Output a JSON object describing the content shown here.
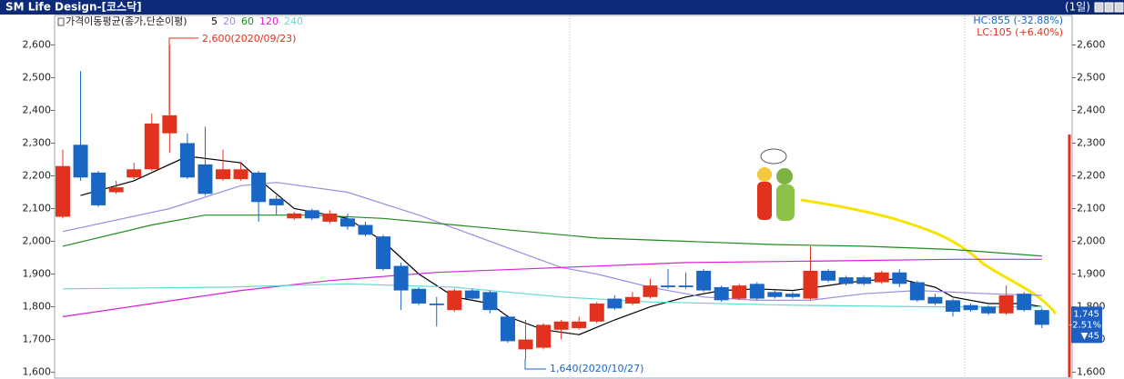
{
  "chart_data": {
    "type": "candlestick",
    "title": "SM Life Design-[코스닥]",
    "period": "(1일)",
    "indicator_label": "가격이동평균(종가,단순이평)",
    "hc_label": "HC:855 (-32.88%)",
    "lc_label": "LC:105 (+6.40%)",
    "high_annotation": "2,600(2020/09/23)",
    "low_annotation": "1,640(2020/10/27)",
    "last_price": "1,745",
    "last_change_pct": "-2.51%",
    "last_change": "▼45",
    "up_color": "#e0321c",
    "down_color": "#1a66c4",
    "open": [
      2075,
      2295,
      2210,
      2150,
      2195,
      2220,
      2330,
      2300,
      2235,
      2190,
      2190,
      2210,
      2130,
      2070,
      2095,
      2060,
      2070,
      2050,
      2015,
      1925,
      1855,
      1810,
      1790,
      1850,
      1845,
      1770,
      1670,
      1675,
      1730,
      1735,
      1755,
      1825,
      1810,
      1830,
      1865,
      1865,
      1910,
      1860,
      1825,
      1870,
      1845,
      1840,
      1825,
      1910,
      1890,
      1890,
      1875,
      1905,
      1875,
      1830,
      1820,
      1805,
      1800,
      1780,
      1840,
      1790
    ],
    "high": [
      2280,
      2520,
      2215,
      2185,
      2240,
      2390,
      2600,
      2330,
      2350,
      2280,
      2240,
      2215,
      2140,
      2090,
      2100,
      2095,
      2085,
      2060,
      2020,
      1935,
      1860,
      1830,
      1855,
      1855,
      1850,
      1775,
      1760,
      1750,
      1760,
      1770,
      1815,
      1835,
      1845,
      1885,
      1915,
      1905,
      1915,
      1865,
      1870,
      1875,
      1855,
      1845,
      1985,
      1915,
      1895,
      1895,
      1910,
      1915,
      1880,
      1840,
      1825,
      1810,
      1805,
      1865,
      1845,
      1795
    ],
    "low": [
      2070,
      2185,
      2105,
      2145,
      2190,
      2215,
      2270,
      2190,
      2140,
      2185,
      2185,
      2060,
      2080,
      2065,
      2065,
      2055,
      2035,
      2015,
      1910,
      1790,
      1805,
      1740,
      1785,
      1820,
      1780,
      1690,
      1640,
      1670,
      1700,
      1730,
      1750,
      1790,
      1805,
      1825,
      1855,
      1855,
      1845,
      1815,
      1820,
      1820,
      1825,
      1825,
      1820,
      1875,
      1865,
      1865,
      1870,
      1860,
      1815,
      1805,
      1770,
      1785,
      1775,
      1775,
      1785,
      1735
    ],
    "close": [
      2230,
      2195,
      2110,
      2165,
      2220,
      2360,
      2385,
      2195,
      2145,
      2220,
      2220,
      2120,
      2110,
      2085,
      2070,
      2085,
      2045,
      2020,
      1915,
      1850,
      1810,
      1805,
      1850,
      1825,
      1790,
      1695,
      1700,
      1745,
      1755,
      1755,
      1810,
      1795,
      1830,
      1865,
      1860,
      1860,
      1850,
      1820,
      1865,
      1825,
      1830,
      1830,
      1910,
      1880,
      1870,
      1870,
      1905,
      1870,
      1820,
      1810,
      1785,
      1790,
      1780,
      1835,
      1790,
      1745
    ],
    "ylim": [
      1585,
      2690
    ],
    "yticks": [
      {
        "value": 1600,
        "label": "1,600"
      },
      {
        "value": 1700,
        "label": "1,700"
      },
      {
        "value": 1800,
        "label": "1,800"
      },
      {
        "value": 1900,
        "label": "1,900"
      },
      {
        "value": 2000,
        "label": "2,000"
      },
      {
        "value": 2100,
        "label": "2,100"
      },
      {
        "value": 2200,
        "label": "2,200"
      },
      {
        "value": 2300,
        "label": "2,300"
      },
      {
        "value": 2400,
        "label": "2,400"
      },
      {
        "value": 2500,
        "label": "2,500"
      },
      {
        "value": 2600,
        "label": "2,600"
      }
    ],
    "series": [
      {
        "name": "5",
        "color": "#000000",
        "x": [
          1,
          4,
          7,
          10,
          11,
          13,
          16,
          18,
          20,
          22,
          24,
          25,
          27,
          29,
          31,
          33,
          35,
          37,
          39,
          41,
          43,
          45,
          47,
          49,
          50,
          52,
          54,
          55
        ],
        "values": [
          2140,
          2185,
          2260,
          2240,
          2190,
          2100,
          2070,
          2000,
          1900,
          1830,
          1810,
          1770,
          1730,
          1715,
          1760,
          1800,
          1830,
          1850,
          1855,
          1850,
          1865,
          1880,
          1885,
          1860,
          1830,
          1810,
          1810,
          1800
        ]
      },
      {
        "name": "20",
        "color": "#9b8fe0",
        "x": [
          0,
          6,
          10,
          12,
          16,
          20,
          24,
          26,
          28,
          30,
          33,
          36,
          39,
          42,
          45,
          48,
          52,
          55
        ],
        "values": [
          2030,
          2100,
          2170,
          2180,
          2150,
          2080,
          2000,
          1960,
          1920,
          1900,
          1860,
          1830,
          1820,
          1820,
          1840,
          1850,
          1840,
          1835
        ]
      },
      {
        "name": "60",
        "color": "#1e8c1e",
        "x": [
          0,
          5,
          8,
          14,
          18,
          22,
          26,
          30,
          35,
          40,
          45,
          50,
          55
        ],
        "values": [
          1985,
          2050,
          2080,
          2080,
          2070,
          2050,
          2030,
          2010,
          2000,
          1990,
          1985,
          1975,
          1955
        ]
      },
      {
        "name": "120",
        "color": "#d81ed8",
        "x": [
          0,
          5,
          10,
          15,
          21,
          28,
          35,
          43,
          50,
          55
        ],
        "values": [
          1770,
          1810,
          1850,
          1880,
          1905,
          1920,
          1935,
          1940,
          1945,
          1945
        ]
      },
      {
        "name": "240",
        "color": "#5fdccc",
        "x": [
          0,
          9,
          16,
          22,
          28,
          33,
          41,
          49,
          55
        ],
        "values": [
          1855,
          1860,
          1870,
          1860,
          1830,
          1815,
          1805,
          1800,
          1800
        ]
      }
    ]
  }
}
